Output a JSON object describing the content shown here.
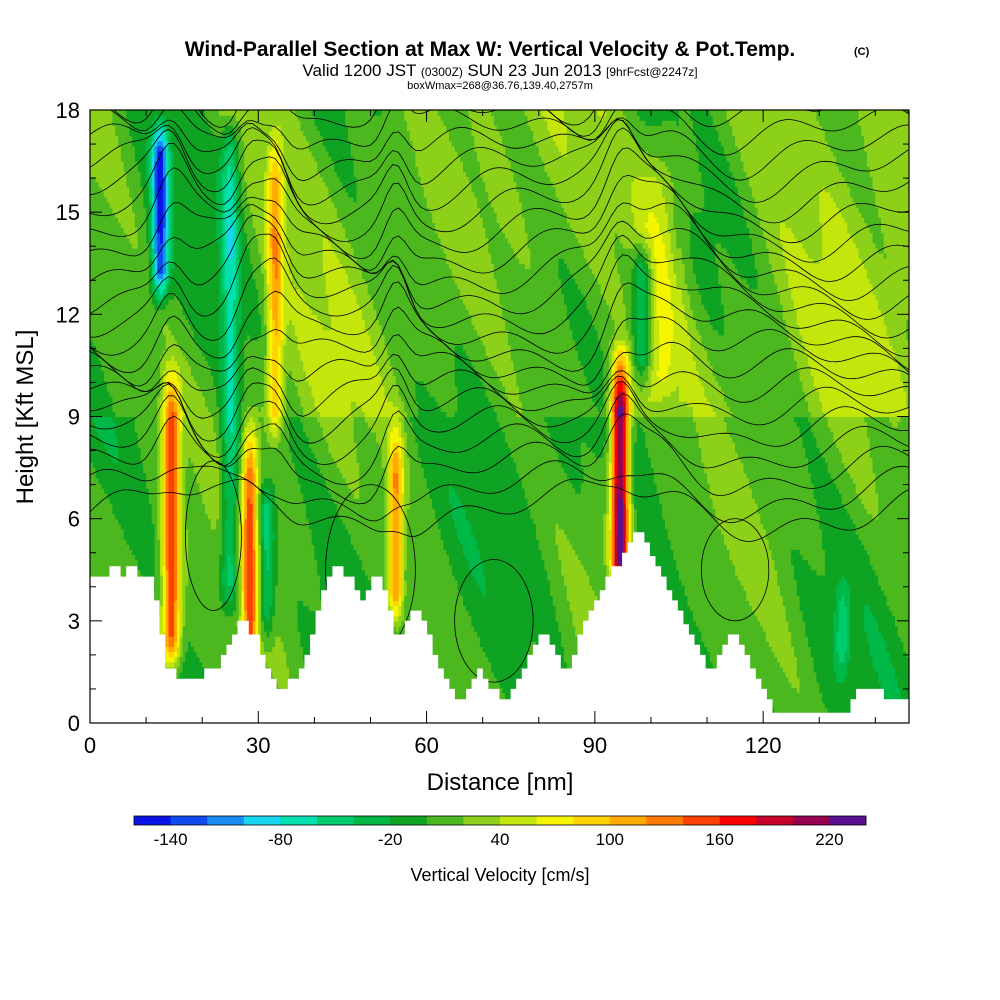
{
  "chart_data": {
    "type": "heatmap",
    "title": "Wind-Parallel Section at Max W: Vertical Velocity & Pot.Temp.",
    "title_mark": "(C)",
    "subtitle": {
      "valid": "Valid 1200 JST",
      "utc": "(0300Z)",
      "date": "SUN 23 Jun 2013",
      "forecast": "[9hrFcst@2247z]"
    },
    "box_note": "boxWmax=268@36.76,139.40,2757m",
    "xlabel": "Distance [nm]",
    "ylabel": "Height [Kft MSL]",
    "xlim": [
      0,
      146
    ],
    "ylim": [
      0,
      18
    ],
    "x_ticks": [
      "0",
      "30",
      "60",
      "90",
      "120"
    ],
    "y_ticks": [
      "0",
      "3",
      "6",
      "9",
      "12",
      "15",
      "18"
    ],
    "colorbar": {
      "label": "Vertical Velocity [cm/s]",
      "tick_labels": [
        "-140",
        "-80",
        "-20",
        "40",
        "100",
        "160",
        "220"
      ],
      "levels": [
        -160,
        -140,
        -120,
        -100,
        -80,
        -60,
        -40,
        -20,
        0,
        20,
        40,
        60,
        80,
        100,
        120,
        140,
        160,
        180,
        200,
        220,
        240
      ],
      "colors": [
        "#0a14e6",
        "#0f4bf0",
        "#1a8cf5",
        "#18d4f0",
        "#00e0b0",
        "#00cc6e",
        "#00b848",
        "#0ea323",
        "#4cb81f",
        "#8cd019",
        "#c4e60c",
        "#f5f500",
        "#ffd200",
        "#ffaa00",
        "#ff7a00",
        "#ff4000",
        "#ff0000",
        "#c80028",
        "#960050",
        "#5a1090"
      ]
    },
    "terrain_kft": [
      4.3,
      4.3,
      4.3,
      4.3,
      4.6,
      4.6,
      4.3,
      4.6,
      4.6,
      4.3,
      4.3,
      4.3,
      3.6,
      2.6,
      1.6,
      1.6,
      1.3,
      1.3,
      1.3,
      1.3,
      1.3,
      1.6,
      1.6,
      1.6,
      2.0,
      2.3,
      2.6,
      3.0,
      3.0,
      2.6,
      2.6,
      2.0,
      1.6,
      1.3,
      1.0,
      1.0,
      1.3,
      1.3,
      1.6,
      2.0,
      2.6,
      3.3,
      3.9,
      4.3,
      4.6,
      4.6,
      4.3,
      4.3,
      3.9,
      3.6,
      3.9,
      4.3,
      4.3,
      3.9,
      3.3,
      2.6,
      2.6,
      3.0,
      3.3,
      3.3,
      3.0,
      2.6,
      2.0,
      1.6,
      1.3,
      1.0,
      0.7,
      0.7,
      1.0,
      1.3,
      1.6,
      1.3,
      1.0,
      1.0,
      0.7,
      0.7,
      1.0,
      1.3,
      1.6,
      2.0,
      2.3,
      2.6,
      2.6,
      2.3,
      2.0,
      1.6,
      1.6,
      2.0,
      2.6,
      3.0,
      3.3,
      3.6,
      3.9,
      4.3,
      4.6,
      4.6,
      5.0,
      5.3,
      5.6,
      5.6,
      5.3,
      4.9,
      4.6,
      4.3,
      3.9,
      3.6,
      3.3,
      2.9,
      2.6,
      2.3,
      2.0,
      1.6,
      1.6,
      2.0,
      2.3,
      2.6,
      2.6,
      2.3,
      2.0,
      1.6,
      1.3,
      1.0,
      0.7,
      0.3,
      0.3,
      0.3,
      0.3,
      0.3,
      0.3,
      0.3,
      0.3,
      0.3,
      0.3,
      0.3,
      0.3,
      0.3,
      0.3,
      0.7,
      1.0,
      1.0,
      1.0,
      1.0,
      1.0,
      0.7,
      0.7,
      0.7,
      0.7,
      0.7
    ],
    "updraft_cores": [
      {
        "x": 14.5,
        "peak_w": 150,
        "width_nm": 1.6,
        "base_kft": 1.3,
        "top_kft": 11.0
      },
      {
        "x": 28.5,
        "peak_w": 130,
        "width_nm": 1.4,
        "base_kft": 1.0,
        "top_kft": 9.5
      },
      {
        "x": 33.0,
        "peak_w": 90,
        "width_nm": 1.4,
        "base_kft": 8.0,
        "top_kft": 18.0
      },
      {
        "x": 54.5,
        "peak_w": 110,
        "width_nm": 1.3,
        "base_kft": 2.6,
        "top_kft": 9.5
      },
      {
        "x": 94.5,
        "peak_w": 230,
        "width_nm": 1.6,
        "base_kft": 3.6,
        "top_kft": 11.5
      },
      {
        "x": 101.5,
        "peak_w": 50,
        "width_nm": 4.0,
        "base_kft": 9.0,
        "top_kft": 18.0
      }
    ],
    "downdraft_cores": [
      {
        "x": 12.5,
        "peak_w": -140,
        "width_nm": 1.5,
        "base_kft": 12.0,
        "top_kft": 18.0
      },
      {
        "x": 25.0,
        "peak_w": -70,
        "width_nm": 1.6,
        "base_kft": 3.0,
        "top_kft": 18.0
      },
      {
        "x": 31.5,
        "peak_w": -60,
        "width_nm": 1.4,
        "base_kft": 2.0,
        "top_kft": 7.5
      },
      {
        "x": 98.5,
        "peak_w": -80,
        "width_nm": 1.8,
        "base_kft": 9.5,
        "top_kft": 14.5
      },
      {
        "x": 134.0,
        "peak_w": -50,
        "width_nm": 1.2,
        "base_kft": 1.0,
        "top_kft": 4.5
      }
    ]
  }
}
